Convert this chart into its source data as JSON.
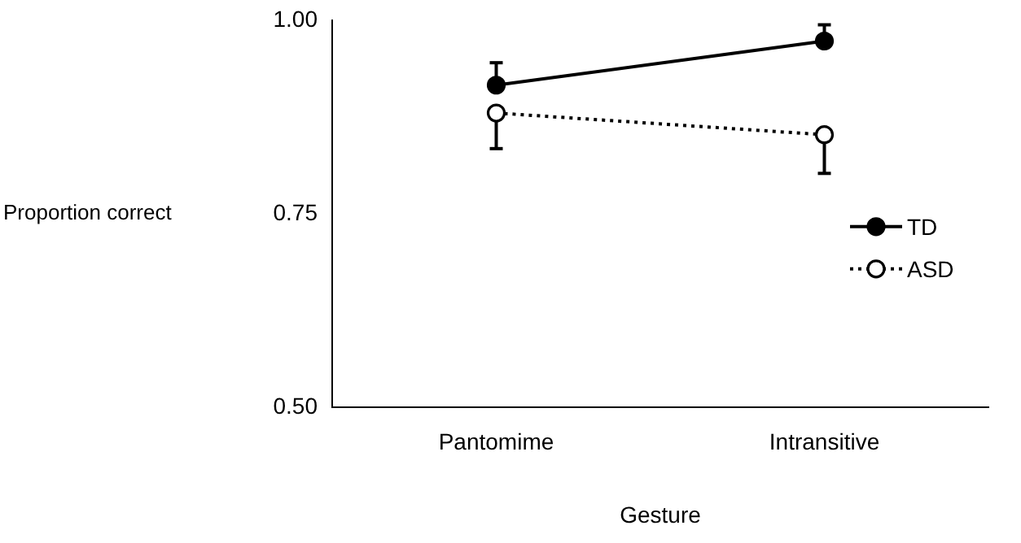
{
  "chart_data": {
    "type": "line",
    "xlabel": "Gesture",
    "ylabel": "Proportion correct",
    "categories": [
      "Pantomime",
      "Intransitive"
    ],
    "series": [
      {
        "name": "TD",
        "color": "#000000",
        "values": [
          0.916,
          0.973
        ],
        "errors": [
          [
            0.916,
            0.945
          ],
          [
            0.973,
            0.994
          ]
        ],
        "marker": "circle",
        "line_style": "solid"
      },
      {
        "name": "ASD",
        "color": "#000000",
        "values": [
          0.88,
          0.852
        ],
        "errors": [
          [
            0.834,
            0.88
          ],
          [
            0.802,
            0.852
          ]
        ],
        "marker": "circle",
        "line_style": "dotted"
      }
    ],
    "ylim": [
      0.5,
      1.0
    ],
    "yticks": [
      {
        "value": 0.5,
        "label": "0.50"
      },
      {
        "value": 0.75,
        "label": "0.75"
      },
      {
        "value": 1.0,
        "label": "1.00"
      }
    ],
    "grid": false,
    "legend": "right"
  }
}
